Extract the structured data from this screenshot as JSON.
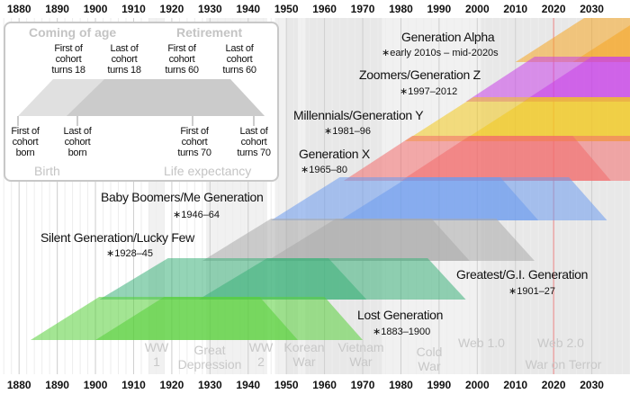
{
  "axis": {
    "years": [
      1880,
      1890,
      1900,
      1910,
      1920,
      1930,
      1940,
      1950,
      1960,
      1970,
      1980,
      1990,
      2000,
      2010,
      2020,
      2030
    ],
    "start": 1875,
    "end": 2040,
    "current_year": 2020
  },
  "legend": {
    "coming_of_age": "Coming of age",
    "retirement": "Retirement",
    "birth": "Birth",
    "life_expectancy": "Life expectancy",
    "first_turns_18": "First of\ncohort\nturns 18",
    "last_turns_18": "Last of\ncohort\nturns 18",
    "first_turns_60": "First of\ncohort\nturns 60",
    "last_turns_60": "Last of\ncohort\nturns 60",
    "first_born": "First of\ncohort\nborn",
    "last_born": "Last of\ncohort\nborn",
    "first_turns_70": "First of\ncohort\nturns 70",
    "last_turns_70": "Last of\ncohort\nturns 70"
  },
  "generations": [
    {
      "name": "Generation Alpha",
      "range": "∗early 2010s – mid-2020s",
      "born_start": 2010,
      "born_end": 2025,
      "color": "#f5a623"
    },
    {
      "name": "Zoomers/Generation Z",
      "range": "∗1997–2012",
      "born_start": 1997,
      "born_end": 2012,
      "color": "#c941e8"
    },
    {
      "name": "Millennials/Generation Y",
      "range": "∗1981–96",
      "born_start": 1981,
      "born_end": 1996,
      "color": "#f2c81e"
    },
    {
      "name": "Generation X",
      "range": "∗1965–80",
      "born_start": 1965,
      "born_end": 1980,
      "color": "#f26b6b"
    },
    {
      "name": "Baby Boomers/Me Generation",
      "range": "∗1946–64",
      "born_start": 1946,
      "born_end": 1964,
      "color": "#6c9bef"
    },
    {
      "name": "Silent Generation/Lucky Few",
      "range": "∗1928–45",
      "born_start": 1928,
      "born_end": 1945,
      "color": "#a9a9a9"
    },
    {
      "name": "Greatest/G.I. Generation",
      "range": "∗1901–27",
      "born_start": 1901,
      "born_end": 1927,
      "color": "#3db07a"
    },
    {
      "name": "Lost Generation",
      "range": "∗1883–1900",
      "born_start": 1883,
      "born_end": 1900,
      "color": "#58d03a"
    }
  ],
  "events": [
    {
      "label": "WW\n1",
      "start": 1914,
      "end": 1918
    },
    {
      "label": "Great\nDepression",
      "start": 1929,
      "end": 1939
    },
    {
      "label": "WW\n2",
      "start": 1939,
      "end": 1945
    },
    {
      "label": "Korean\nWar",
      "start": 1950,
      "end": 1953
    },
    {
      "label": "Vietnam\nWar",
      "start": 1955,
      "end": 1975
    },
    {
      "label": "Cold\nWar",
      "start": 1947,
      "end": 1991
    },
    {
      "label": "Web 1.0",
      "start": 1991,
      "end": 2004
    },
    {
      "label": "Web 2.0",
      "start": 2004,
      "end": 2040
    },
    {
      "label": "War on Terror",
      "start": 2001,
      "end": 2040
    }
  ]
}
